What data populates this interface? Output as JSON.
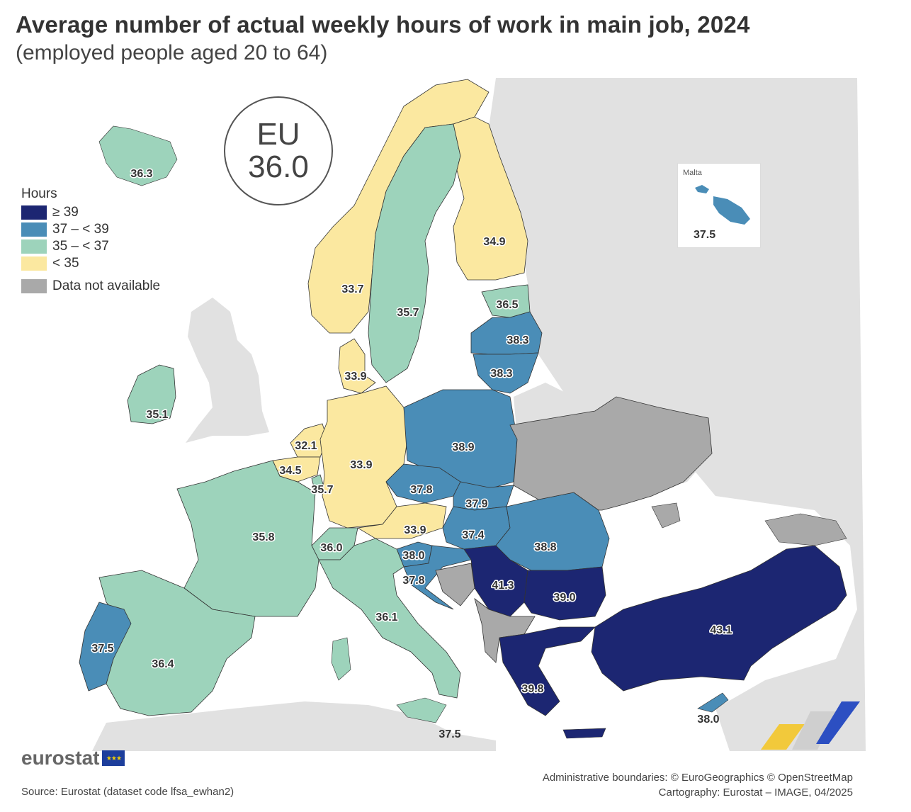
{
  "title": "Average number of actual weekly hours of work in main job, 2024",
  "subtitle": "(employed people aged 20 to 64)",
  "eu": {
    "label": "EU",
    "value": "36.0"
  },
  "legend": {
    "title": "Hours",
    "items": [
      {
        "label": "≥ 39",
        "color": "#1c2672"
      },
      {
        "label": "37 – < 39",
        "color": "#4a8db7"
      },
      {
        "label": "35 – < 37",
        "color": "#9dd3bb"
      },
      {
        "label": "< 35",
        "color": "#fbe8a0"
      }
    ],
    "not_available": {
      "label": "Data not available",
      "color": "#a9a9a9"
    }
  },
  "colors": {
    "background_land": "#e1e1e1",
    "sea": "#ffffff",
    "border": "#333333"
  },
  "malta_inset": {
    "name": "Malta",
    "value": "37.5"
  },
  "chart_data": {
    "type": "choropleth",
    "unit": "Hours",
    "regions": [
      {
        "country": "Iceland",
        "value": "36.3"
      },
      {
        "country": "Norway",
        "value": "33.7"
      },
      {
        "country": "Sweden",
        "value": "35.7"
      },
      {
        "country": "Finland",
        "value": "34.9"
      },
      {
        "country": "Estonia",
        "value": "36.5"
      },
      {
        "country": "Latvia",
        "value": "38.3"
      },
      {
        "country": "Lithuania",
        "value": "38.3"
      },
      {
        "country": "Denmark",
        "value": "33.9"
      },
      {
        "country": "Ireland",
        "value": "35.1"
      },
      {
        "country": "Netherlands",
        "value": "32.1"
      },
      {
        "country": "Belgium",
        "value": "34.5"
      },
      {
        "country": "Luxembourg",
        "value": "35.7"
      },
      {
        "country": "Germany",
        "value": "33.9"
      },
      {
        "country": "Poland",
        "value": "38.9"
      },
      {
        "country": "Czechia",
        "value": "37.8"
      },
      {
        "country": "Slovakia",
        "value": "37.9"
      },
      {
        "country": "Austria",
        "value": "33.9"
      },
      {
        "country": "Hungary",
        "value": "37.4"
      },
      {
        "country": "Switzerland",
        "value": "36.0"
      },
      {
        "country": "Slovenia",
        "value": "38.0"
      },
      {
        "country": "Croatia",
        "value": "37.8"
      },
      {
        "country": "France",
        "value": "35.8"
      },
      {
        "country": "Romania",
        "value": "38.8"
      },
      {
        "country": "Serbia",
        "value": "41.3"
      },
      {
        "country": "Bulgaria",
        "value": "39.0"
      },
      {
        "country": "Italy",
        "value": "36.1"
      },
      {
        "country": "Portugal",
        "value": "37.5"
      },
      {
        "country": "Spain",
        "value": "36.4"
      },
      {
        "country": "Greece",
        "value": "39.8"
      },
      {
        "country": "Türkiye",
        "value": "43.1"
      },
      {
        "country": "Cyprus",
        "value": "38.0"
      },
      {
        "country": "Malta",
        "value": "37.5"
      }
    ]
  },
  "footer": {
    "logo_text": "eurostat",
    "source": "Source: Eurostat (dataset code lfsa_ewhan2)",
    "boundaries": "Administrative boundaries: © EuroGeographics © OpenStreetMap",
    "cartography": "Cartography: Eurostat – IMAGE, 04/2025"
  }
}
